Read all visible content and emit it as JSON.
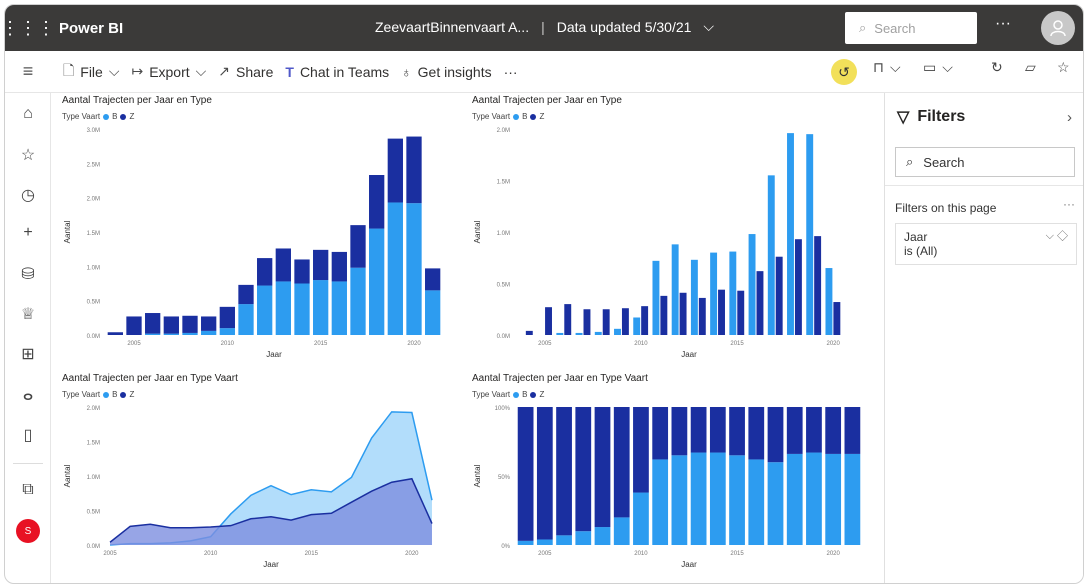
{
  "topbar": {
    "app_name": "Power BI",
    "report_name": "ZeevaartBinnenvaart A...",
    "separator": "|",
    "data_updated": "Data updated 5/30/21",
    "search_placeholder": "Search",
    "more": "···"
  },
  "toolbar": {
    "file": "File",
    "export": "Export",
    "share": "Share",
    "chat_in_teams": "Chat in Teams",
    "get_insights": "Get insights",
    "more": "···"
  },
  "filters": {
    "title": "Filters",
    "search_placeholder": "Search",
    "section": "Filters on this page",
    "section_more": "···",
    "card_field": "Jaar",
    "card_value": "is (All)"
  },
  "colors": {
    "B": "#2d9cf0",
    "Z": "#1a2fa0",
    "accent": "#f2e05a",
    "topbar": "#3b3a39"
  },
  "nav_icons": [
    "home-icon",
    "star-icon",
    "clock-icon",
    "plus-icon",
    "database-icon",
    "trophy-icon",
    "apps-icon",
    "people-icon",
    "book-icon",
    "workspace-icon"
  ],
  "charts": [
    {
      "title": "Aantal Trajecten per Jaar en Type",
      "legend_label": "Type Vaart",
      "legend_b": "B",
      "legend_z": "Z",
      "xlabel": "Jaar",
      "ylabel": "Aantal"
    },
    {
      "title": "Aantal Trajecten per Jaar en Type",
      "legend_label": "Type Vaart",
      "legend_b": "B",
      "legend_z": "Z",
      "xlabel": "Jaar",
      "ylabel": "Aantal"
    },
    {
      "title": "Aantal Trajecten per Jaar en Type Vaart",
      "legend_label": "Type Vaart",
      "legend_b": "B",
      "legend_z": "Z",
      "xlabel": "Jaar",
      "ylabel": "Aantal"
    },
    {
      "title": "Aantal Trajecten per Jaar en Type Vaart",
      "legend_label": "Type Vaart",
      "legend_b": "B",
      "legend_z": "Z",
      "xlabel": "Jaar",
      "ylabel": "Aantal"
    }
  ],
  "chart_data": [
    {
      "type": "bar",
      "stacked": true,
      "categories": [
        2004,
        2005,
        2006,
        2007,
        2008,
        2009,
        2010,
        2011,
        2012,
        2013,
        2014,
        2015,
        2016,
        2017,
        2018,
        2019,
        2020,
        2021
      ],
      "x_ticks": [
        "2005",
        "2010",
        "2015",
        "2020"
      ],
      "y_ticks": [
        "0.0M",
        "0.5M",
        "1.0M",
        "1.5M",
        "2.0M",
        "2.5M",
        "3.0M"
      ],
      "ylim": [
        0,
        3000000
      ],
      "series": [
        {
          "name": "B",
          "values": [
            0,
            0,
            20000,
            20000,
            30000,
            60000,
            100000,
            450000,
            720000,
            780000,
            750000,
            800000,
            780000,
            980000,
            1550000,
            1930000,
            1920000,
            650000
          ]
        },
        {
          "name": "Z",
          "values": [
            40000,
            270000,
            300000,
            250000,
            250000,
            210000,
            310000,
            280000,
            400000,
            480000,
            350000,
            440000,
            430000,
            620000,
            780000,
            930000,
            970000,
            320000
          ]
        }
      ]
    },
    {
      "type": "bar",
      "stacked": false,
      "categories": [
        2004,
        2005,
        2006,
        2007,
        2008,
        2009,
        2010,
        2011,
        2012,
        2013,
        2014,
        2015,
        2016,
        2017,
        2018,
        2019,
        2020,
        2021
      ],
      "x_ticks": [
        "2005",
        "2010",
        "2015",
        "2020"
      ],
      "y_ticks": [
        "0.0M",
        "0.5M",
        "1.0M",
        "1.5M",
        "2.0M"
      ],
      "ylim": [
        0,
        2000000
      ],
      "series": [
        {
          "name": "B",
          "values": [
            0,
            0,
            20000,
            20000,
            30000,
            60000,
            170000,
            720000,
            880000,
            730000,
            800000,
            810000,
            980000,
            1550000,
            1960000,
            1950000,
            650000,
            0
          ]
        },
        {
          "name": "Z",
          "values": [
            40000,
            270000,
            300000,
            250000,
            250000,
            260000,
            280000,
            380000,
            410000,
            360000,
            440000,
            430000,
            620000,
            760000,
            930000,
            960000,
            320000,
            0
          ]
        }
      ]
    },
    {
      "type": "area",
      "x": [
        2005,
        2006,
        2007,
        2008,
        2009,
        2010,
        2011,
        2012,
        2013,
        2014,
        2015,
        2016,
        2017,
        2018,
        2019,
        2020,
        2021
      ],
      "x_ticks": [
        "2005",
        "2010",
        "2015",
        "2020"
      ],
      "y_ticks": [
        "0.0M",
        "0.5M",
        "1.0M",
        "1.5M",
        "2.0M"
      ],
      "ylim": [
        0,
        2000000
      ],
      "series": [
        {
          "name": "B",
          "values": [
            0,
            20000,
            20000,
            30000,
            60000,
            120000,
            450000,
            720000,
            860000,
            730000,
            800000,
            770000,
            980000,
            1550000,
            1930000,
            1920000,
            650000
          ]
        },
        {
          "name": "Z",
          "values": [
            40000,
            270000,
            300000,
            250000,
            250000,
            260000,
            280000,
            380000,
            410000,
            360000,
            440000,
            460000,
            620000,
            780000,
            910000,
            960000,
            310000
          ]
        }
      ]
    },
    {
      "type": "bar",
      "stacked": true,
      "percent": true,
      "categories": [
        2004,
        2005,
        2006,
        2007,
        2008,
        2009,
        2010,
        2011,
        2012,
        2013,
        2014,
        2015,
        2016,
        2017,
        2018,
        2019,
        2020,
        2021
      ],
      "x_ticks": [
        "2005",
        "2010",
        "2015",
        "2020"
      ],
      "y_ticks": [
        "0%",
        "50%",
        "100%"
      ],
      "ylim": [
        0,
        100
      ],
      "series": [
        {
          "name": "B",
          "values": [
            3,
            4,
            7,
            10,
            13,
            20,
            38,
            62,
            65,
            67,
            67,
            65,
            62,
            60,
            66,
            67,
            66,
            66
          ]
        },
        {
          "name": "Z",
          "values": [
            97,
            96,
            93,
            90,
            87,
            80,
            62,
            38,
            35,
            33,
            33,
            35,
            38,
            40,
            34,
            33,
            34,
            34
          ]
        }
      ]
    }
  ]
}
